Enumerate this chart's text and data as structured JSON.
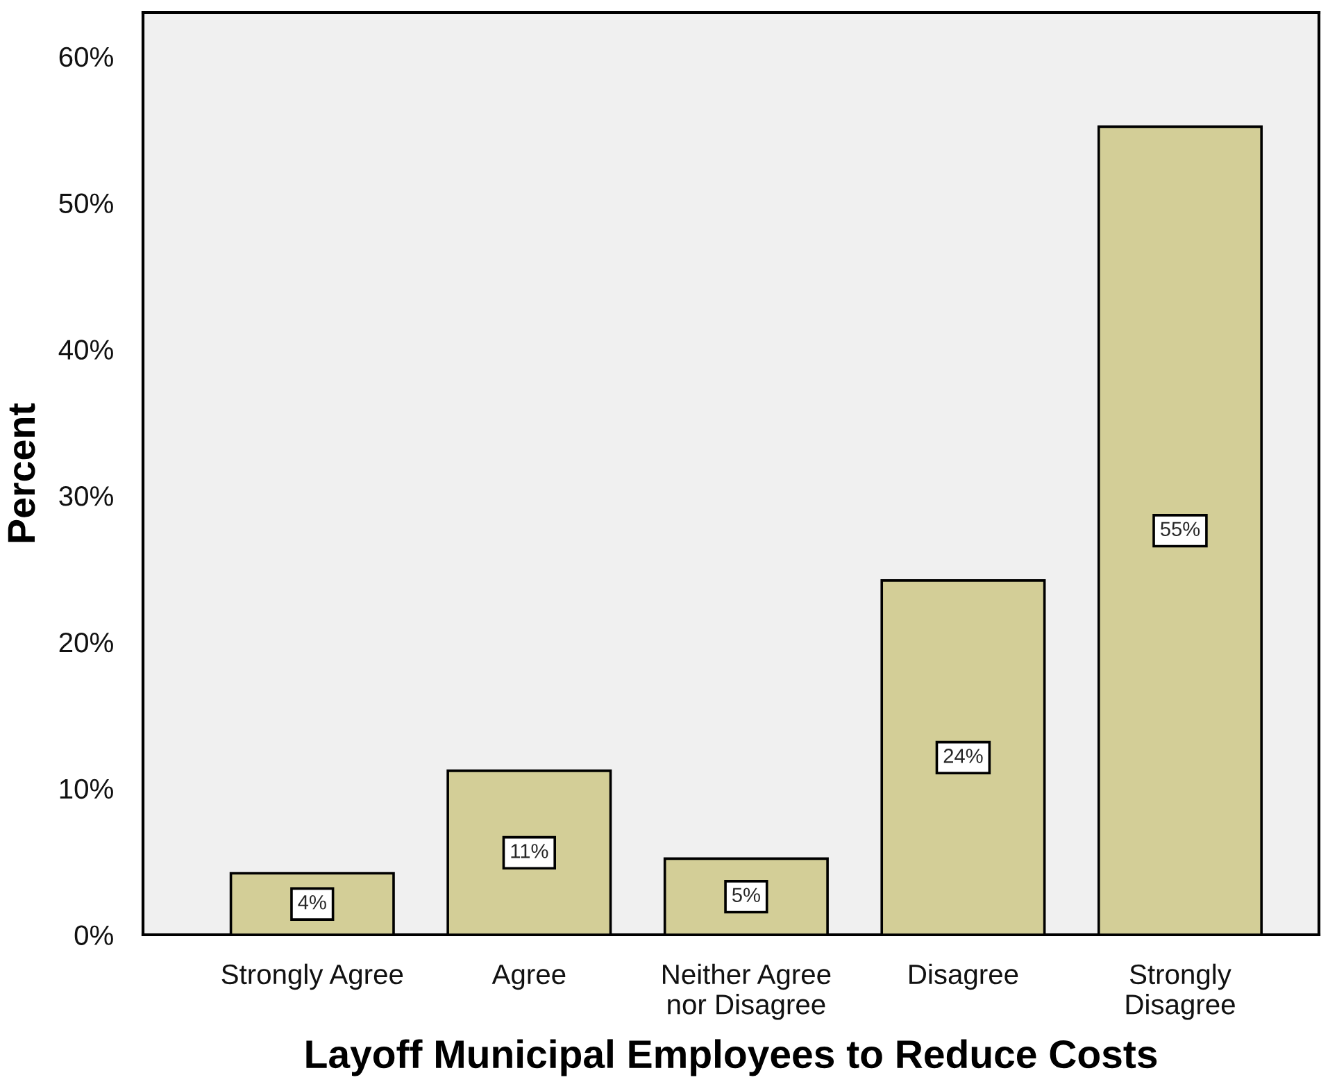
{
  "chart_data": {
    "type": "bar",
    "categories": [
      "Strongly Agree",
      "Agree",
      "Neither Agree\nnor Disagree",
      "Disagree",
      "Strongly\nDisagree"
    ],
    "values": [
      4.2,
      11.2,
      5.2,
      24.2,
      55.2
    ],
    "value_labels": [
      "4%",
      "11%",
      "5%",
      "24%",
      "55%"
    ],
    "color": "#d3ce97",
    "xlabel": "Layoff Municipal Employees to Reduce Costs",
    "ylabel": "Percent",
    "ylim": [
      0,
      63
    ],
    "yticks": [
      {
        "value": 0,
        "label": "0%"
      },
      {
        "value": 10,
        "label": "10%"
      },
      {
        "value": 20,
        "label": "20%"
      },
      {
        "value": 30,
        "label": "30%"
      },
      {
        "value": 40,
        "label": "40%"
      },
      {
        "value": 50,
        "label": "50%"
      },
      {
        "value": 60,
        "label": "60%"
      }
    ],
    "grid": false,
    "legend": false
  }
}
